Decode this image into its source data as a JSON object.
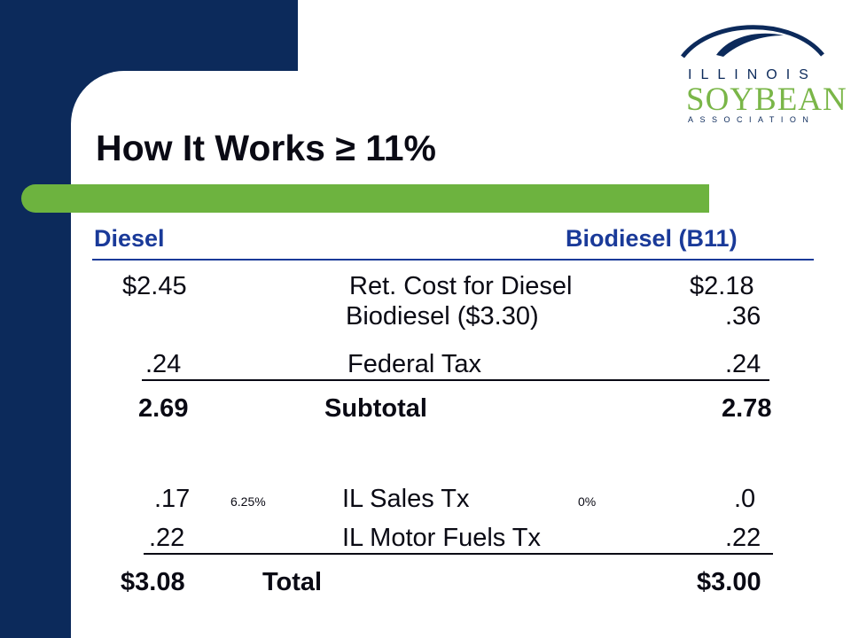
{
  "logo": {
    "line1": "ILLINOIS",
    "line2": "SOYBEAN",
    "line3": "ASSOCIATION"
  },
  "title": "How It Works ≥ 11%",
  "header": {
    "left": "Diesel",
    "right": "Biodiesel  (B11)"
  },
  "rows": {
    "ret_cost": {
      "diesel": "$2.45",
      "label": "Ret. Cost for Diesel",
      "bio": "$2.18"
    },
    "biodiesel": {
      "label": "Biodiesel  ($3.30)",
      "bio": ".36"
    },
    "federal_tax": {
      "diesel": ".24",
      "label": "Federal Tax",
      "bio": ".24"
    },
    "subtotal": {
      "diesel": "2.69",
      "label": "Subtotal",
      "bio": "2.78"
    },
    "sales_tax": {
      "diesel": ".17",
      "rate_diesel": "6.25%",
      "label": "IL Sales Tx",
      "rate_bio": "0%",
      "bio": ".0"
    },
    "motor_fuels": {
      "diesel": ".22",
      "label": "IL Motor Fuels Tx",
      "bio": ".22"
    },
    "total": {
      "diesel": "$3.08",
      "label": "Total",
      "bio": "$3.00"
    }
  },
  "colors": {
    "navy": "#0c2a5b",
    "green": "#6db33f",
    "header_blue": "#1a3a99"
  }
}
